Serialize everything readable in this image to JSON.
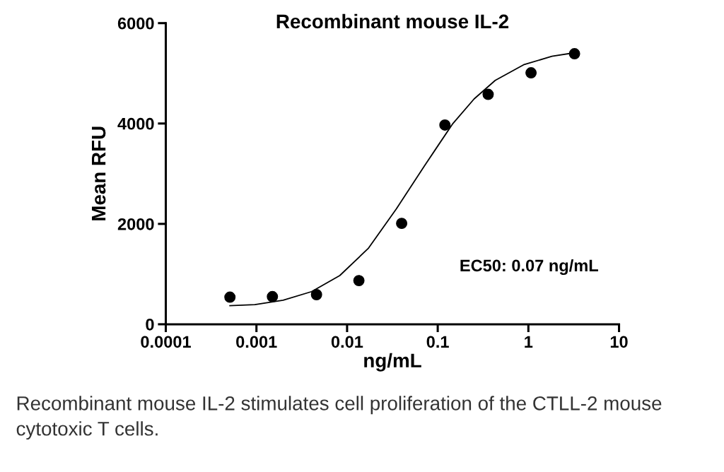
{
  "chart_data": {
    "type": "scatter",
    "title": "Recombinant mouse IL-2",
    "xlabel": "ng/mL",
    "ylabel": "Mean RFU",
    "log": "x",
    "marker": "circle",
    "grid": false,
    "legend": false,
    "xlim": [
      0.0001,
      10
    ],
    "xticks": [
      0.0001,
      0.001,
      0.01,
      0.1,
      1,
      10
    ],
    "ylim": [
      0,
      6000
    ],
    "yticks": [
      0,
      2000,
      4000,
      6000
    ],
    "series": [
      {
        "color": "#000000",
        "x": [
          0.00051,
          0.0015,
          0.0046,
          0.0135,
          0.04,
          0.12,
          0.36,
          1.07,
          3.23
        ],
        "values": [
          540,
          550,
          590,
          870,
          2010,
          3970,
          4580,
          5010,
          5390
        ]
      },
      {
        "type": "line",
        "color": "#000000",
        "marker": "none",
        "x": [
          0.00051,
          0.00096,
          0.00197,
          0.00405,
          0.0083,
          0.0171,
          0.035,
          0.0716,
          0.1025,
          0.147,
          0.252,
          0.431,
          0.885,
          1.82,
          3.23
        ],
        "values": [
          370,
          390,
          480,
          650,
          970,
          1510,
          2300,
          3160,
          3580,
          4000,
          4490,
          4860,
          5170,
          5340,
          5410
        ]
      }
    ],
    "annotations": [
      "EC50: 0.07 ng/mL",
      "Recombinant mouse IL-2 stimulates cell proliferation of the CTLL-2 mouse cytotoxic T cells."
    ]
  }
}
